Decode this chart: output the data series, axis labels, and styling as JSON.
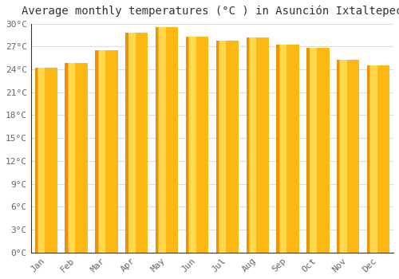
{
  "title": "Average monthly temperatures (°C ) in Asunción Ixtaltepec",
  "months": [
    "Jan",
    "Feb",
    "Mar",
    "Apr",
    "May",
    "Jun",
    "Jul",
    "Aug",
    "Sep",
    "Oct",
    "Nov",
    "Dec"
  ],
  "temperatures": [
    24.2,
    24.8,
    26.5,
    28.8,
    29.5,
    28.3,
    27.8,
    28.2,
    27.2,
    26.8,
    25.3,
    24.5
  ],
  "bar_color_main": "#FDB813",
  "bar_color_dark": "#E8950A",
  "bar_color_light": "#FFD84D",
  "ylim": [
    0,
    30
  ],
  "yticks": [
    0,
    3,
    6,
    9,
    12,
    15,
    18,
    21,
    24,
    27,
    30
  ],
  "ytick_labels": [
    "0°C",
    "3°C",
    "6°C",
    "9°C",
    "12°C",
    "15°C",
    "18°C",
    "21°C",
    "24°C",
    "27°C",
    "30°C"
  ],
  "background_color": "#ffffff",
  "grid_color": "#dddddd",
  "title_fontsize": 10,
  "tick_fontsize": 8,
  "font_color": "#666666",
  "spine_color": "#333333"
}
